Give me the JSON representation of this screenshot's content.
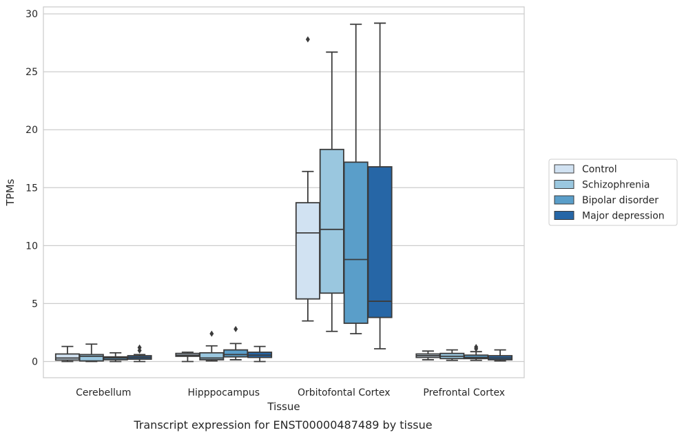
{
  "chart_data": {
    "type": "box",
    "title": "",
    "caption": "Transcript expression for ENST00000487489 by tissue",
    "xlabel": "Tissue",
    "ylabel": "TPMs",
    "ylim": [
      -1.4,
      30.6
    ],
    "yticks": [
      0,
      5,
      10,
      15,
      20,
      25,
      30
    ],
    "grid": "horizontal",
    "legend_position": "right",
    "categories": [
      "Cerebellum",
      "Hipppocampus",
      "Orbitofontal Cortex",
      "Prefrontal Cortex"
    ],
    "series": [
      {
        "name": "Control",
        "color": "#d1e2f2",
        "boxes": [
          {
            "whislo": 0.0,
            "q1": 0.12,
            "med": 0.3,
            "q3": 0.65,
            "whishi": 1.3,
            "fliers": []
          },
          {
            "whislo": 0.0,
            "q1": 0.45,
            "med": 0.55,
            "q3": 0.7,
            "whishi": 0.8,
            "fliers": []
          },
          {
            "whislo": 3.5,
            "q1": 5.4,
            "med": 11.1,
            "q3": 13.7,
            "whishi": 16.4,
            "fliers": [
              27.8
            ]
          },
          {
            "whislo": 0.15,
            "q1": 0.35,
            "med": 0.5,
            "q3": 0.65,
            "whishi": 0.9,
            "fliers": []
          }
        ]
      },
      {
        "name": "Schizophrenia",
        "color": "#9ac7df",
        "boxes": [
          {
            "whislo": 0.0,
            "q1": 0.05,
            "med": 0.45,
            "q3": 0.6,
            "whishi": 1.5,
            "fliers": []
          },
          {
            "whislo": 0.05,
            "q1": 0.15,
            "med": 0.3,
            "q3": 0.75,
            "whishi": 1.35,
            "fliers": [
              2.4
            ]
          },
          {
            "whislo": 2.6,
            "q1": 5.9,
            "med": 11.4,
            "q3": 18.3,
            "whishi": 26.7,
            "fliers": []
          },
          {
            "whislo": 0.1,
            "q1": 0.25,
            "med": 0.45,
            "q3": 0.7,
            "whishi": 1.0,
            "fliers": []
          }
        ]
      },
      {
        "name": "Bipolar disorder",
        "color": "#5a9ec9",
        "boxes": [
          {
            "whislo": 0.0,
            "q1": 0.15,
            "med": 0.3,
            "q3": 0.4,
            "whishi": 0.75,
            "fliers": []
          },
          {
            "whislo": 0.15,
            "q1": 0.4,
            "med": 0.6,
            "q3": 1.0,
            "whishi": 1.55,
            "fliers": [
              2.8
            ]
          },
          {
            "whislo": 2.4,
            "q1": 3.3,
            "med": 8.8,
            "q3": 17.2,
            "whishi": 29.1,
            "fliers": []
          },
          {
            "whislo": 0.1,
            "q1": 0.25,
            "med": 0.35,
            "q3": 0.55,
            "whishi": 0.85,
            "fliers": [
              1.1,
              1.25
            ]
          }
        ]
      },
      {
        "name": "Major depression",
        "color": "#2666a6",
        "boxes": [
          {
            "whislo": 0.0,
            "q1": 0.2,
            "med": 0.35,
            "q3": 0.5,
            "whishi": 0.6,
            "fliers": [
              0.95,
              1.2
            ]
          },
          {
            "whislo": 0.0,
            "q1": 0.35,
            "med": 0.55,
            "q3": 0.8,
            "whishi": 1.3,
            "fliers": []
          },
          {
            "whislo": 1.1,
            "q1": 3.8,
            "med": 5.2,
            "q3": 16.8,
            "whishi": 29.2,
            "fliers": []
          },
          {
            "whislo": 0.05,
            "q1": 0.15,
            "med": 0.3,
            "q3": 0.5,
            "whishi": 1.0,
            "fliers": []
          }
        ]
      }
    ]
  }
}
